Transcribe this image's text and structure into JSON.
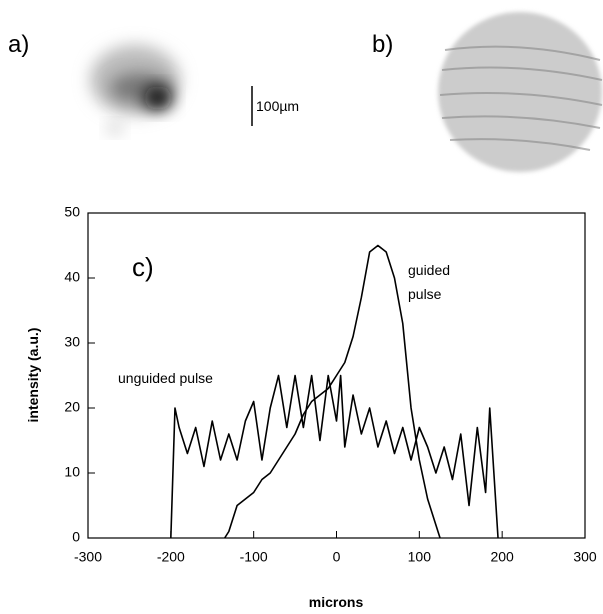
{
  "panel_labels": [
    "a)",
    "b)"
  ],
  "scale_bar": "100µm",
  "chart_data": {
    "type": "line",
    "panel_label": "c)",
    "x_label": "microns",
    "y_label": "intensity (a.u.)",
    "xlim": [
      -300,
      300
    ],
    "ylim": [
      0,
      50
    ],
    "xticks": [
      -300,
      -200,
      -100,
      0,
      100,
      200,
      300
    ],
    "yticks": [
      0,
      10,
      20,
      30,
      40,
      50
    ],
    "annotations": [
      [
        "guided",
        "pulse"
      ],
      [
        "unguided pulse"
      ]
    ],
    "series": [
      {
        "color": "#000000",
        "x": [
          -135,
          -130,
          -120,
          -110,
          -100,
          -90,
          -80,
          -70,
          -60,
          -50,
          -40,
          -30,
          -20,
          -10,
          0,
          10,
          20,
          30,
          40,
          50,
          60,
          70,
          80,
          90,
          100,
          110,
          120,
          125
        ],
        "values": [
          0,
          1,
          5,
          6,
          7,
          9,
          10,
          12,
          14,
          16,
          19,
          21,
          22,
          23,
          25,
          27,
          31,
          37,
          44,
          45,
          44,
          40,
          33,
          20,
          12,
          6,
          2,
          0
        ]
      },
      {
        "color": "#000000",
        "x": [
          -200,
          -195,
          -190,
          -180,
          -170,
          -160,
          -150,
          -140,
          -130,
          -120,
          -110,
          -100,
          -90,
          -80,
          -70,
          -60,
          -50,
          -40,
          -30,
          -20,
          -10,
          0,
          5,
          10,
          20,
          30,
          40,
          50,
          60,
          70,
          80,
          90,
          100,
          110,
          120,
          130,
          140,
          150,
          160,
          170,
          180,
          185,
          190,
          195
        ],
        "values": [
          0,
          20,
          17,
          13,
          17,
          11,
          18,
          12,
          16,
          12,
          18,
          21,
          12,
          20,
          25,
          17,
          25,
          17,
          25,
          15,
          25,
          18,
          25,
          14,
          22,
          16,
          20,
          14,
          18,
          13,
          17,
          12,
          17,
          14,
          10,
          14,
          9,
          16,
          5,
          17,
          7,
          20,
          10,
          0
        ]
      }
    ]
  }
}
